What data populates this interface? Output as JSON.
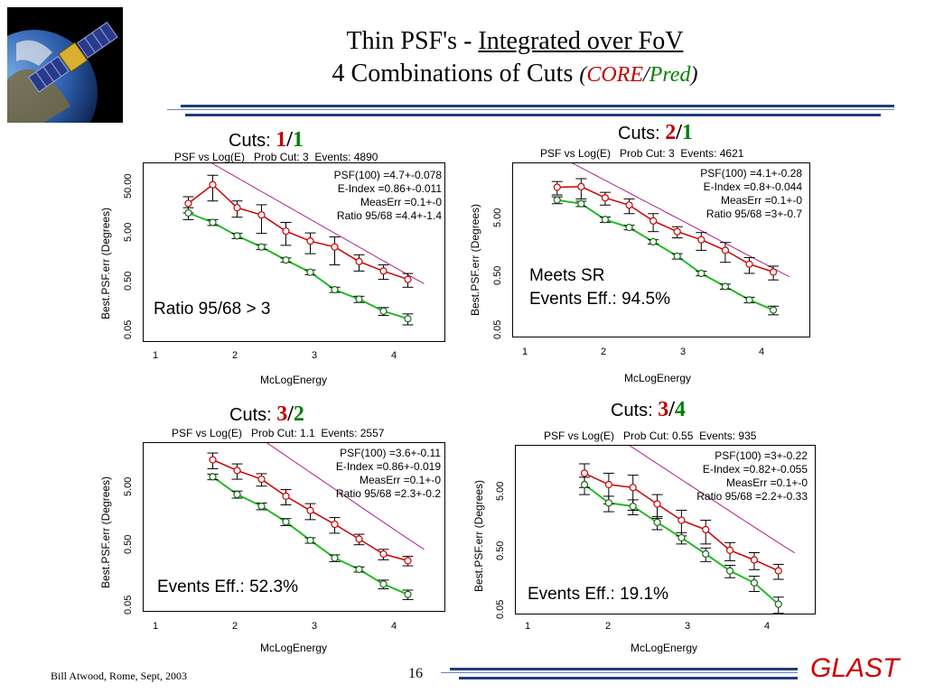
{
  "slide": {
    "title_line1_a": "Thin PSF's - ",
    "title_line1_b": "Integrated over FoV",
    "title_line2_a": "4 Combinations of Cuts ",
    "title_open": "(",
    "title_core": "CORE",
    "title_slash": "/",
    "title_pred": "Pred",
    "title_close": ")",
    "footer_left": "Bill Atwood,  Rome, Sept, 2003",
    "page_number": "16",
    "logo_text": "GLAST"
  },
  "colors": {
    "core": "#c00000",
    "pred": "#008000",
    "red_curve": "#cc0000",
    "green_curve": "#22bb22",
    "magenta_fit": "#b0208a",
    "rule": "#1f3d7a"
  },
  "chart_data": [
    {
      "type": "scatter",
      "cuts_label": "Cuts:",
      "cuts_core": "1",
      "cuts_pred": "1",
      "header": "PSF vs Log(E)   Prob Cut: 3  Events: 4890",
      "stats": [
        "PSF(100) =4.7+-0.078",
        "E-Index =0.86+-0.011",
        "MeasErr =0.1+-0",
        "Ratio 95/68 =4.4+-1.4"
      ],
      "note": [
        "Ratio 95/68 > 3"
      ],
      "xlabel": "McLogEnergy",
      "ylabel": "Best.PSF.err (Degrees)",
      "xlim": [
        0.9,
        4.6
      ],
      "ylim": [
        0.05,
        100
      ],
      "yscale": "log",
      "xticks": [
        "1",
        "2",
        "3",
        "4"
      ],
      "yticks": [
        "0.05",
        "0.50",
        "5.00",
        "50.00"
      ],
      "x": [
        1.45,
        1.75,
        2.05,
        2.35,
        2.65,
        2.95,
        3.25,
        3.55,
        3.85,
        4.15
      ],
      "series": [
        {
          "values": [
            18,
            40,
            15,
            11,
            5.5,
            3.6,
            2.8,
            1.5,
            1.0,
            0.7
          ],
          "errors": [
            6,
            20,
            5,
            6,
            2.5,
            1.5,
            1.5,
            0.5,
            0.3,
            0.2
          ]
        },
        {
          "values": [
            12,
            8.0,
            4.5,
            2.8,
            1.6,
            0.95,
            0.45,
            0.3,
            0.18,
            0.13
          ],
          "errors": [
            3,
            1.0,
            0.5,
            0.3,
            0.15,
            0.1,
            0.05,
            0.04,
            0.03,
            0.03
          ]
        }
      ],
      "fit": {
        "a": 60,
        "b": 0.86,
        "c": 0.105
      }
    },
    {
      "type": "scatter",
      "cuts_label": "Cuts:",
      "cuts_core": "2",
      "cuts_pred": "1",
      "header": "PSF vs Log(E)   Prob Cut: 3  Events: 4621",
      "stats": [
        "PSF(100) =4.1+-0.28",
        "E-Index =0.8+-0.044",
        "MeasErr =0.1+-0",
        "Ratio 95/68 =3+-0.7"
      ],
      "note": [
        "Meets SR",
        "Events Eff.: 94.5%"
      ],
      "xlabel": "McLogEnergy",
      "ylabel": "Best.PSF.err (Degrees)",
      "xlim": [
        0.9,
        4.6
      ],
      "ylim": [
        0.05,
        100
      ],
      "yscale": "log",
      "xticks": [
        "1",
        "2",
        "3",
        "4"
      ],
      "yticks": [
        "0.05",
        "0.50",
        "5.00"
      ],
      "x": [
        1.45,
        1.75,
        2.05,
        2.35,
        2.65,
        2.95,
        3.25,
        3.55,
        3.85,
        4.15
      ],
      "series": [
        {
          "values": [
            35,
            36,
            22,
            16,
            8.0,
            5.0,
            3.5,
            2.2,
            1.2,
            0.85
          ],
          "errors": [
            10,
            15,
            6,
            5,
            3,
            1.2,
            1.3,
            0.9,
            0.4,
            0.25
          ]
        },
        {
          "values": [
            20,
            17,
            8.5,
            6.0,
            3.2,
            1.7,
            0.8,
            0.45,
            0.25,
            0.16
          ],
          "errors": [
            3,
            2,
            1,
            0.6,
            0.3,
            0.2,
            0.08,
            0.05,
            0.03,
            0.03
          ]
        }
      ],
      "fit": {
        "a": 52,
        "b": 0.8,
        "c": 0.1
      }
    },
    {
      "type": "scatter",
      "cuts_label": "Cuts:",
      "cuts_core": "3",
      "cuts_pred": "2",
      "header": "PSF vs Log(E)   Prob Cut: 1.1  Events: 2557",
      "stats": [
        "PSF(100) =3.6+-0.11",
        "E-Index =0.86+-0.019",
        "MeasErr =0.1+-0",
        "Ratio 95/68 =2.3+-0.2"
      ],
      "note": [
        "Events Eff.: 52.3%"
      ],
      "xlabel": "McLogEnergy",
      "ylabel": "Best.PSF.err (Degrees)",
      "xlim": [
        0.9,
        4.6
      ],
      "ylim": [
        0.05,
        20
      ],
      "yscale": "log",
      "xticks": [
        "1",
        "2",
        "3",
        "4"
      ],
      "yticks": [
        "0.05",
        "0.50",
        "5.00"
      ],
      "x": [
        1.75,
        2.05,
        2.35,
        2.65,
        2.95,
        3.25,
        3.55,
        3.85,
        4.15
      ],
      "series": [
        {
          "values": [
            11,
            7.5,
            5.5,
            3.0,
            1.8,
            1.1,
            0.65,
            0.38,
            0.3
          ],
          "errors": [
            3,
            2,
            1.2,
            0.8,
            0.5,
            0.3,
            0.12,
            0.07,
            0.05
          ]
        },
        {
          "values": [
            6.0,
            3.2,
            2.1,
            1.2,
            0.62,
            0.33,
            0.22,
            0.13,
            0.09
          ],
          "errors": [
            0.6,
            0.4,
            0.25,
            0.15,
            0.06,
            0.04,
            0.02,
            0.02,
            0.015
          ]
        }
      ],
      "fit": {
        "a": 46,
        "b": 0.86,
        "c": 0.1
      }
    },
    {
      "type": "scatter",
      "cuts_label": "Cuts:",
      "cuts_core": "3",
      "cuts_pred": "4",
      "header": "PSF vs Log(E)   Prob Cut: 0.55  Events: 935",
      "stats": [
        "PSF(100) =3+-0.22",
        "E-Index =0.82+-0.055",
        "MeasErr =0.1+-0",
        "Ratio 95/68 =2.2+-0.33"
      ],
      "note": [
        "Events Eff.: 19.1%"
      ],
      "xlabel": "McLogEnergy",
      "ylabel": "Best.PSF.err (Degrees)",
      "xlim": [
        0.9,
        4.6
      ],
      "ylim": [
        0.05,
        20
      ],
      "yscale": "log",
      "xticks": [
        "1",
        "2",
        "3",
        "4"
      ],
      "yticks": [
        "0.05",
        "0.50",
        "5.00"
      ],
      "x": [
        1.75,
        2.05,
        2.35,
        2.65,
        2.95,
        3.25,
        3.55,
        3.85,
        4.15
      ],
      "series": [
        {
          "values": [
            7.5,
            5.0,
            4.5,
            2.5,
            1.4,
            1.0,
            0.48,
            0.34,
            0.23
          ],
          "errors": [
            3,
            2.5,
            2.5,
            1.0,
            0.6,
            0.4,
            0.15,
            0.1,
            0.06
          ]
        },
        {
          "values": [
            5.0,
            2.6,
            2.3,
            1.3,
            0.75,
            0.42,
            0.23,
            0.15,
            0.07
          ],
          "errors": [
            1.5,
            0.7,
            0.6,
            0.3,
            0.15,
            0.1,
            0.05,
            0.04,
            0.02
          ]
        }
      ],
      "fit": {
        "a": 36,
        "b": 0.82,
        "c": 0.1
      }
    }
  ]
}
